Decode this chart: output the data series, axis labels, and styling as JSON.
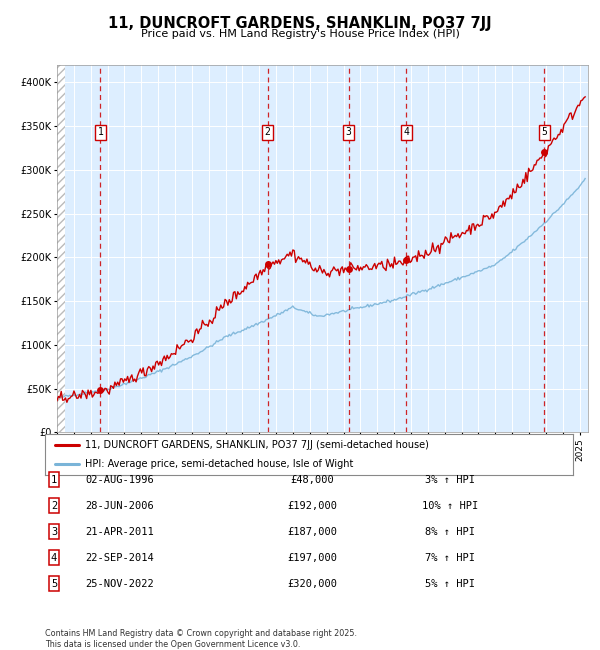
{
  "title": "11, DUNCROFT GARDENS, SHANKLIN, PO37 7JJ",
  "subtitle": "Price paid vs. HM Land Registry's House Price Index (HPI)",
  "legend_line1": "11, DUNCROFT GARDENS, SHANKLIN, PO37 7JJ (semi-detached house)",
  "legend_line2": "HPI: Average price, semi-detached house, Isle of Wight",
  "footnote": "Contains HM Land Registry data © Crown copyright and database right 2025.\nThis data is licensed under the Open Government Licence v3.0.",
  "transactions": [
    {
      "num": 1,
      "date": "1996-08-02",
      "price": 48000,
      "pct": "3%",
      "x_year": 1996.58
    },
    {
      "num": 2,
      "date": "2006-06-28",
      "price": 192000,
      "pct": "10%",
      "x_year": 2006.49
    },
    {
      "num": 3,
      "date": "2011-04-21",
      "price": 187000,
      "pct": "8%",
      "x_year": 2011.3
    },
    {
      "num": 4,
      "date": "2014-09-22",
      "price": 197000,
      "pct": "7%",
      "x_year": 2014.72
    },
    {
      "num": 5,
      "date": "2022-11-25",
      "price": 320000,
      "pct": "5%",
      "x_year": 2022.9
    }
  ],
  "hpi_color": "#7ab4d8",
  "price_color": "#cc0000",
  "marker_color": "#cc0000",
  "dashed_color": "#cc0000",
  "plot_bg": "#ddeeff",
  "grid_color": "#ffffff",
  "ylim": [
    0,
    420000
  ],
  "yticks": [
    0,
    50000,
    100000,
    150000,
    200000,
    250000,
    300000,
    350000,
    400000
  ],
  "xlim_start": 1994.0,
  "xlim_end": 2025.5,
  "table_rows": [
    [
      "1",
      "02-AUG-1996",
      "£48,000",
      "3% ↑ HPI"
    ],
    [
      "2",
      "28-JUN-2006",
      "£192,000",
      "10% ↑ HPI"
    ],
    [
      "3",
      "21-APR-2011",
      "£187,000",
      "8% ↑ HPI"
    ],
    [
      "4",
      "22-SEP-2014",
      "£197,000",
      "7% ↑ HPI"
    ],
    [
      "5",
      "25-NOV-2022",
      "£320,000",
      "5% ↑ HPI"
    ]
  ]
}
